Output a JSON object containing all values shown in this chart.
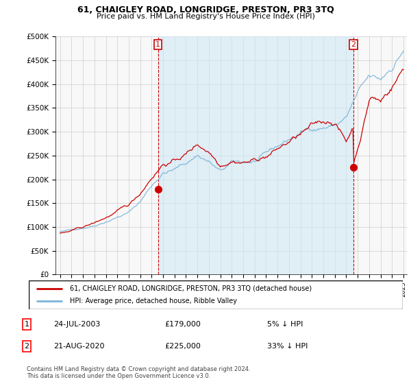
{
  "title": "61, CHAIGLEY ROAD, LONGRIDGE, PRESTON, PR3 3TQ",
  "subtitle": "Price paid vs. HM Land Registry's House Price Index (HPI)",
  "ylabel_ticks": [
    "£0",
    "£50K",
    "£100K",
    "£150K",
    "£200K",
    "£250K",
    "£300K",
    "£350K",
    "£400K",
    "£450K",
    "£500K"
  ],
  "ytick_values": [
    0,
    50000,
    100000,
    150000,
    200000,
    250000,
    300000,
    350000,
    400000,
    450000,
    500000
  ],
  "ylim": [
    0,
    500000
  ],
  "hpi_color": "#7ab4d8",
  "hpi_fill_color": "#d0e8f5",
  "price_color": "#cc0000",
  "vline_color": "#cc0000",
  "grid_color": "#cccccc",
  "plot_bg_color": "#f8f8f8",
  "transaction_1": {
    "date": "24-JUL-2003",
    "price": 179000,
    "year": 2003.56,
    "pct": "5%",
    "dir": "↓"
  },
  "transaction_2": {
    "date": "21-AUG-2020",
    "price": 225000,
    "year": 2020.64,
    "pct": "33%",
    "dir": "↓"
  },
  "legend_line1": "61, CHAIGLEY ROAD, LONGRIDGE, PRESTON, PR3 3TQ (detached house)",
  "legend_line2": "HPI: Average price, detached house, Ribble Valley",
  "footnote": "Contains HM Land Registry data © Crown copyright and database right 2024.\nThis data is licensed under the Open Government Licence v3.0."
}
